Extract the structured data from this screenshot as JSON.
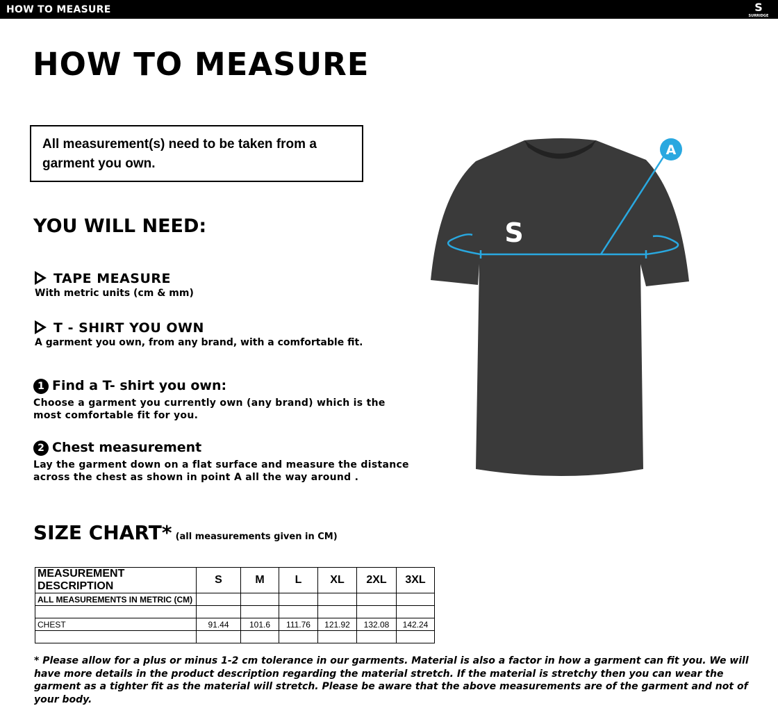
{
  "header": {
    "title": "HOW TO MEASURE",
    "logo_text": "SURRIDGE"
  },
  "page_title": "HOW TO MEASURE",
  "notice": "All measurement(s) need to be taken from a garment you own.",
  "need": {
    "title": "YOU WILL NEED:",
    "items": [
      {
        "title": "TAPE MEASURE",
        "desc": "With metric units (cm & mm)",
        "icon": "play-triangle-icon"
      },
      {
        "title": "T - SHIRT YOU OWN",
        "desc": "A garment you own, from any brand, with a comfortable fit.",
        "icon": "play-triangle-icon"
      }
    ]
  },
  "steps": [
    {
      "num": "1",
      "title": "Find a T- shirt you own:",
      "desc": "Choose a garment you currently own (any brand) which is the most comfortable fit for you."
    },
    {
      "num": "2",
      "title": "Chest measurement",
      "desc": "Lay the garment down on a flat surface and measure the distance across the chest as shown in point A all the way around ."
    }
  ],
  "diagram": {
    "marker": "A",
    "accent": "#29a8e0",
    "shirt_color": "#3a3a3a"
  },
  "size_chart": {
    "title": "SIZE CHART*",
    "subtitle": "(all measurements given in CM)",
    "header": [
      "MEASUREMENT DESCRIPTION",
      "S",
      "M",
      "L",
      "XL",
      "2XL",
      "3XL"
    ],
    "rows": [
      [
        "ALL MEASUREMENTS IN METRIC (CM)",
        "",
        "",
        "",
        "",
        "",
        ""
      ],
      [
        "",
        "",
        "",
        "",
        "",
        "",
        ""
      ],
      [
        "CHEST",
        "91.44",
        "101.6",
        "111.76",
        "121.92",
        "132.08",
        "142.24"
      ],
      [
        "",
        "",
        "",
        "",
        "",
        "",
        ""
      ]
    ]
  },
  "footnote": "* Please allow for a plus or minus 1-2 cm tolerance in our garments. Material is also a factor in how a garment can fit you. We will have more details in the product description regarding the material stretch.  If the material is stretchy then you can wear the garment as a tighter fit as the material will stretch.  Please be aware that the above measurements are of the garment and not of your body."
}
